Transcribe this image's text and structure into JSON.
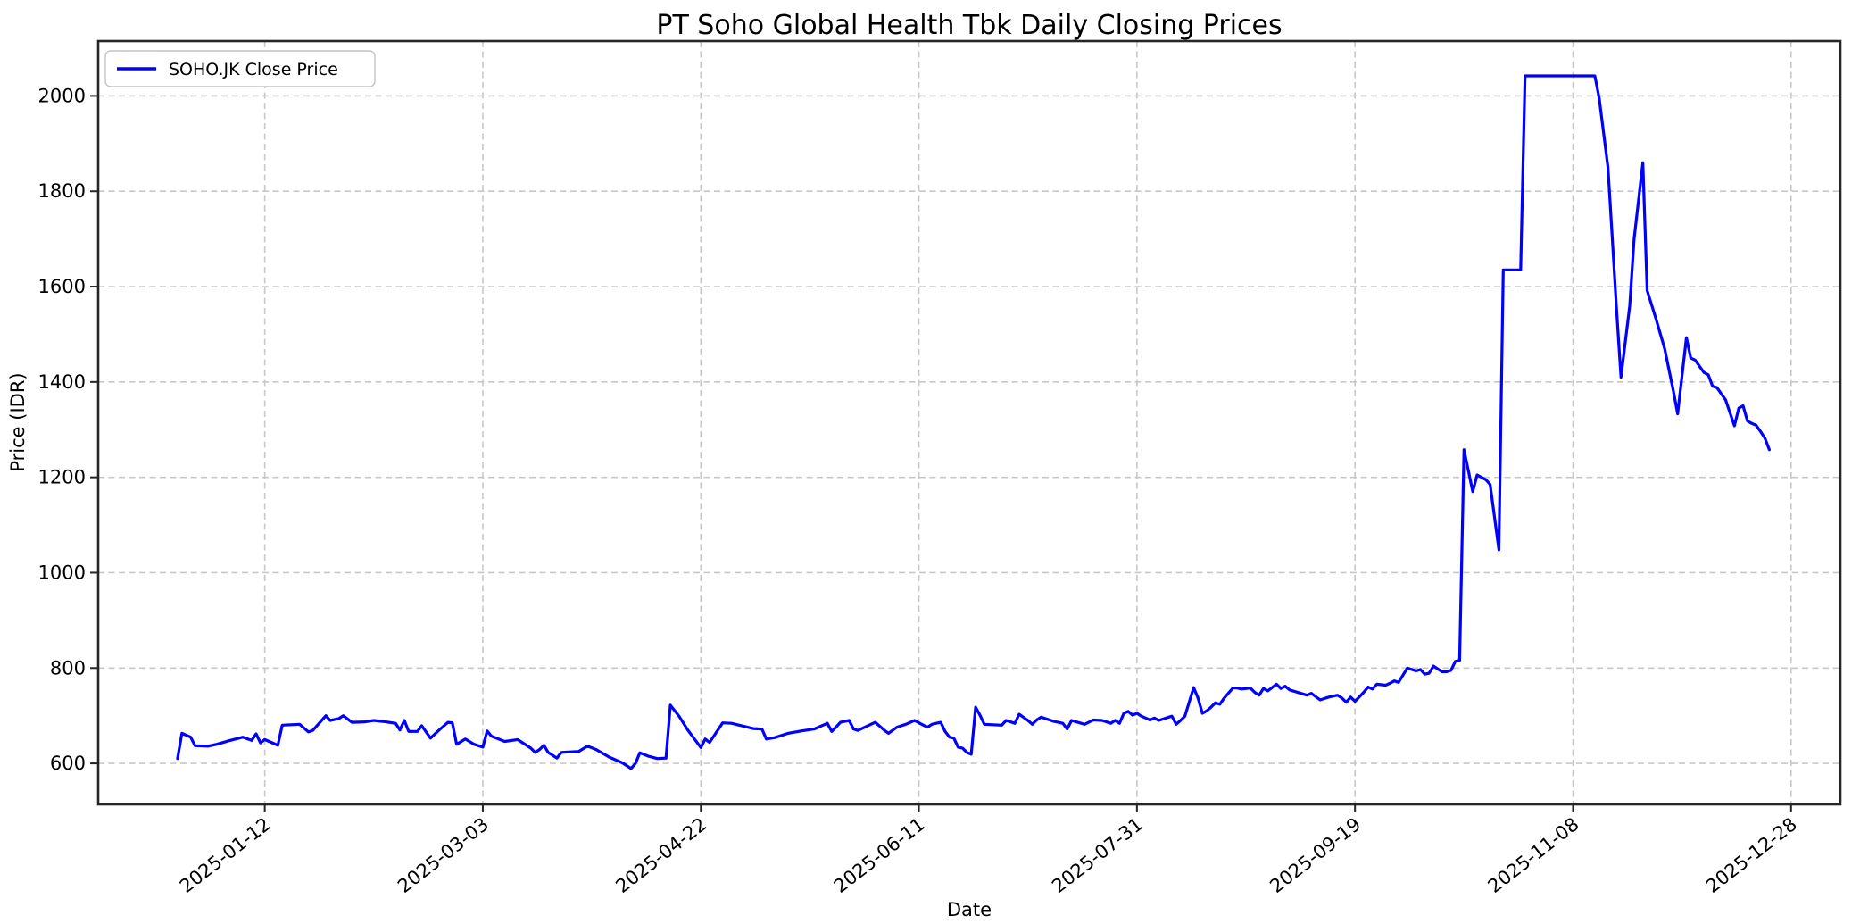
{
  "chart_data": {
    "type": "line",
    "title": "PT Soho Global Health Tbk Daily Closing Prices",
    "xlabel": "Date",
    "ylabel": "Price (IDR)",
    "legend": {
      "label": "SOHO.JK Close Price",
      "position": "upper-left"
    },
    "grid": true,
    "line_color": "#0000ff",
    "grid_color": "#c8c8c8",
    "spine_color": "#262626",
    "background_color": "#ffffff",
    "x_ticks": [
      "2025-01-12",
      "2025-03-03",
      "2025-04-22",
      "2025-06-11",
      "2025-07-31",
      "2025-09-19",
      "2025-11-08",
      "2025-12-28"
    ],
    "y_ticks": [
      600,
      800,
      1000,
      1200,
      1400,
      1600,
      1800,
      2000
    ],
    "ylim": [
      514,
      2115
    ],
    "xlim_days": [
      -27.2,
      372.3
    ],
    "series": [
      {
        "name": "SOHO.JK Close Price",
        "color": "#0000ff",
        "points": [
          [
            "2024-12-23",
            610
          ],
          [
            "2024-12-24",
            663
          ],
          [
            "2024-12-26",
            655
          ],
          [
            "2024-12-27",
            637
          ],
          [
            "2024-12-30",
            636
          ],
          [
            "2025-01-01",
            640
          ],
          [
            "2025-01-04",
            648
          ],
          [
            "2025-01-07",
            655
          ],
          [
            "2025-01-09",
            648
          ],
          [
            "2025-01-10",
            662
          ],
          [
            "2025-01-11",
            643
          ],
          [
            "2025-01-12",
            650
          ],
          [
            "2025-01-14",
            642
          ],
          [
            "2025-01-15",
            638
          ],
          [
            "2025-01-16",
            680
          ],
          [
            "2025-01-18",
            681
          ],
          [
            "2025-01-20",
            682
          ],
          [
            "2025-01-22",
            666
          ],
          [
            "2025-01-23",
            669
          ],
          [
            "2025-01-26",
            700
          ],
          [
            "2025-01-27",
            690
          ],
          [
            "2025-01-29",
            694
          ],
          [
            "2025-01-30",
            700
          ],
          [
            "2025-02-01",
            686
          ],
          [
            "2025-02-04",
            687
          ],
          [
            "2025-02-06",
            690
          ],
          [
            "2025-02-08",
            688
          ],
          [
            "2025-02-11",
            684
          ],
          [
            "2025-02-12",
            670
          ],
          [
            "2025-02-13",
            690
          ],
          [
            "2025-02-14",
            667
          ],
          [
            "2025-02-16",
            667
          ],
          [
            "2025-02-17",
            679
          ],
          [
            "2025-02-19",
            653
          ],
          [
            "2025-02-21",
            670
          ],
          [
            "2025-02-23",
            686
          ],
          [
            "2025-02-24",
            685
          ],
          [
            "2025-02-25",
            640
          ],
          [
            "2025-02-27",
            651
          ],
          [
            "2025-03-01",
            640
          ],
          [
            "2025-03-03",
            634
          ],
          [
            "2025-03-04",
            668
          ],
          [
            "2025-03-05",
            657
          ],
          [
            "2025-03-08",
            646
          ],
          [
            "2025-03-11",
            650
          ],
          [
            "2025-03-14",
            632
          ],
          [
            "2025-03-15",
            623
          ],
          [
            "2025-03-16",
            629
          ],
          [
            "2025-03-17",
            638
          ],
          [
            "2025-03-18",
            623
          ],
          [
            "2025-03-20",
            611
          ],
          [
            "2025-03-21",
            623
          ],
          [
            "2025-03-25",
            625
          ],
          [
            "2025-03-27",
            636
          ],
          [
            "2025-03-29",
            629
          ],
          [
            "2025-04-01",
            613
          ],
          [
            "2025-04-04",
            601
          ],
          [
            "2025-04-06",
            589
          ],
          [
            "2025-04-07",
            600
          ],
          [
            "2025-04-08",
            622
          ],
          [
            "2025-04-10",
            615
          ],
          [
            "2025-04-12",
            610
          ],
          [
            "2025-04-14",
            611
          ],
          [
            "2025-04-15",
            722
          ],
          [
            "2025-04-17",
            699
          ],
          [
            "2025-04-19",
            670
          ],
          [
            "2025-04-22",
            633
          ],
          [
            "2025-04-23",
            651
          ],
          [
            "2025-04-24",
            644
          ],
          [
            "2025-04-27",
            685
          ],
          [
            "2025-04-29",
            684
          ],
          [
            "2025-05-04",
            673
          ],
          [
            "2025-05-06",
            672
          ],
          [
            "2025-05-07",
            651
          ],
          [
            "2025-05-09",
            654
          ],
          [
            "2025-05-12",
            663
          ],
          [
            "2025-05-15",
            668
          ],
          [
            "2025-05-18",
            672
          ],
          [
            "2025-05-21",
            684
          ],
          [
            "2025-05-22",
            667
          ],
          [
            "2025-05-23",
            676
          ],
          [
            "2025-05-24",
            686
          ],
          [
            "2025-05-26",
            690
          ],
          [
            "2025-05-27",
            672
          ],
          [
            "2025-05-28",
            669
          ],
          [
            "2025-05-31",
            682
          ],
          [
            "2025-06-01",
            686
          ],
          [
            "2025-06-03",
            670
          ],
          [
            "2025-06-04",
            663
          ],
          [
            "2025-06-06",
            676
          ],
          [
            "2025-06-08",
            682
          ],
          [
            "2025-06-10",
            690
          ],
          [
            "2025-06-12",
            680
          ],
          [
            "2025-06-13",
            676
          ],
          [
            "2025-06-14",
            682
          ],
          [
            "2025-06-16",
            686
          ],
          [
            "2025-06-17",
            667
          ],
          [
            "2025-06-18",
            655
          ],
          [
            "2025-06-19",
            653
          ],
          [
            "2025-06-20",
            634
          ],
          [
            "2025-06-21",
            632
          ],
          [
            "2025-06-22",
            623
          ],
          [
            "2025-06-23",
            619
          ],
          [
            "2025-06-24",
            718
          ],
          [
            "2025-06-25",
            701
          ],
          [
            "2025-06-26",
            682
          ],
          [
            "2025-06-30",
            680
          ],
          [
            "2025-07-01",
            690
          ],
          [
            "2025-07-03",
            684
          ],
          [
            "2025-07-04",
            703
          ],
          [
            "2025-07-06",
            690
          ],
          [
            "2025-07-07",
            682
          ],
          [
            "2025-07-08",
            691
          ],
          [
            "2025-07-09",
            697
          ],
          [
            "2025-07-12",
            688
          ],
          [
            "2025-07-14",
            684
          ],
          [
            "2025-07-15",
            672
          ],
          [
            "2025-07-16",
            690
          ],
          [
            "2025-07-19",
            682
          ],
          [
            "2025-07-21",
            691
          ],
          [
            "2025-07-23",
            690
          ],
          [
            "2025-07-25",
            684
          ],
          [
            "2025-07-26",
            690
          ],
          [
            "2025-07-27",
            684
          ],
          [
            "2025-07-28",
            705
          ],
          [
            "2025-07-29",
            709
          ],
          [
            "2025-07-30",
            701
          ],
          [
            "2025-07-31",
            705
          ],
          [
            "2025-08-01",
            699
          ],
          [
            "2025-08-02",
            695
          ],
          [
            "2025-08-03",
            691
          ],
          [
            "2025-08-04",
            695
          ],
          [
            "2025-08-05",
            690
          ],
          [
            "2025-08-06",
            693
          ],
          [
            "2025-08-08",
            699
          ],
          [
            "2025-08-09",
            682
          ],
          [
            "2025-08-10",
            690
          ],
          [
            "2025-08-11",
            699
          ],
          [
            "2025-08-13",
            759
          ],
          [
            "2025-08-14",
            737
          ],
          [
            "2025-08-15",
            705
          ],
          [
            "2025-08-16",
            710
          ],
          [
            "2025-08-17",
            718
          ],
          [
            "2025-08-18",
            727
          ],
          [
            "2025-08-19",
            724
          ],
          [
            "2025-08-20",
            737
          ],
          [
            "2025-08-22",
            758
          ],
          [
            "2025-08-23",
            758
          ],
          [
            "2025-08-24",
            756
          ],
          [
            "2025-08-26",
            758
          ],
          [
            "2025-08-27",
            749
          ],
          [
            "2025-08-28",
            743
          ],
          [
            "2025-08-29",
            757
          ],
          [
            "2025-08-30",
            752
          ],
          [
            "2025-09-01",
            766
          ],
          [
            "2025-09-02",
            757
          ],
          [
            "2025-09-03",
            762
          ],
          [
            "2025-09-04",
            754
          ],
          [
            "2025-09-08",
            743
          ],
          [
            "2025-09-09",
            747
          ],
          [
            "2025-09-11",
            733
          ],
          [
            "2025-09-13",
            739
          ],
          [
            "2025-09-15",
            743
          ],
          [
            "2025-09-16",
            737
          ],
          [
            "2025-09-17",
            728
          ],
          [
            "2025-09-18",
            739
          ],
          [
            "2025-09-19",
            730
          ],
          [
            "2025-09-21",
            749
          ],
          [
            "2025-09-22",
            760
          ],
          [
            "2025-09-23",
            756
          ],
          [
            "2025-09-24",
            766
          ],
          [
            "2025-09-26",
            764
          ],
          [
            "2025-09-27",
            768
          ],
          [
            "2025-09-28",
            773
          ],
          [
            "2025-09-29",
            770
          ],
          [
            "2025-10-01",
            800
          ],
          [
            "2025-10-02",
            797
          ],
          [
            "2025-10-03",
            794
          ],
          [
            "2025-10-04",
            797
          ],
          [
            "2025-10-05",
            787
          ],
          [
            "2025-10-06",
            789
          ],
          [
            "2025-10-07",
            804
          ],
          [
            "2025-10-08",
            798
          ],
          [
            "2025-10-09",
            792
          ],
          [
            "2025-10-10",
            792
          ],
          [
            "2025-10-11",
            795
          ],
          [
            "2025-10-12",
            814
          ],
          [
            "2025-10-13",
            816
          ],
          [
            "2025-10-14",
            1258
          ],
          [
            "2025-10-16",
            1170
          ],
          [
            "2025-10-17",
            1205
          ],
          [
            "2025-10-19",
            1195
          ],
          [
            "2025-10-20",
            1185
          ],
          [
            "2025-10-22",
            1048
          ],
          [
            "2025-10-23",
            1635
          ],
          [
            "2025-10-27",
            1635
          ],
          [
            "2025-10-28",
            2042
          ],
          [
            "2025-11-13",
            2042
          ],
          [
            "2025-11-14",
            1995
          ],
          [
            "2025-11-16",
            1850
          ],
          [
            "2025-11-17",
            1700
          ],
          [
            "2025-11-18",
            1550
          ],
          [
            "2025-11-19",
            1410
          ],
          [
            "2025-11-21",
            1560
          ],
          [
            "2025-11-22",
            1700
          ],
          [
            "2025-11-23",
            1780
          ],
          [
            "2025-11-24",
            1860
          ],
          [
            "2025-11-25",
            1592
          ],
          [
            "2025-11-27",
            1533
          ],
          [
            "2025-11-29",
            1470
          ],
          [
            "2025-12-01",
            1381
          ],
          [
            "2025-12-02",
            1333
          ],
          [
            "2025-12-04",
            1493
          ],
          [
            "2025-12-05",
            1450
          ],
          [
            "2025-12-06",
            1446
          ],
          [
            "2025-12-08",
            1420
          ],
          [
            "2025-12-09",
            1415
          ],
          [
            "2025-12-10",
            1391
          ],
          [
            "2025-12-11",
            1388
          ],
          [
            "2025-12-13",
            1362
          ],
          [
            "2025-12-15",
            1308
          ],
          [
            "2025-12-16",
            1345
          ],
          [
            "2025-12-17",
            1350
          ],
          [
            "2025-12-18",
            1318
          ],
          [
            "2025-12-19",
            1313
          ],
          [
            "2025-12-20",
            1309
          ],
          [
            "2025-12-21",
            1296
          ],
          [
            "2025-12-22",
            1282
          ],
          [
            "2025-12-23",
            1258
          ]
        ]
      }
    ]
  }
}
